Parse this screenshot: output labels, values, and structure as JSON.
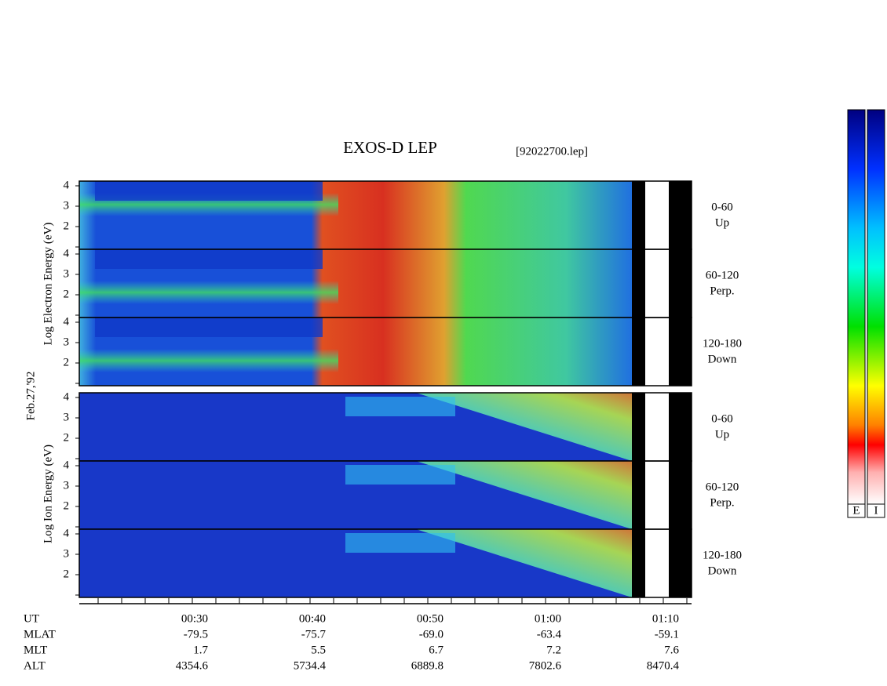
{
  "title": "EXOS-D LEP",
  "file": "[92022700.lep]",
  "electron_axis_label": "Log Electron Energy (eV)",
  "ion_axis_label": "Log Ion Energy (eV)",
  "date": "Feb.27,'92",
  "energy_ticks": [
    "4",
    "3",
    "2"
  ],
  "pitch_angles": [
    {
      "range": "0-60",
      "direction": "Up"
    },
    {
      "range": "60-120",
      "direction": "Perp."
    },
    {
      "range": "120-180",
      "direction": "Down"
    }
  ],
  "time_axis": {
    "rows": [
      {
        "label": "UT",
        "values": [
          "00:30",
          "00:40",
          "00:50",
          "01:00",
          "01:10"
        ]
      },
      {
        "label": "MLAT",
        "values": [
          "-79.5",
          "-75.7",
          "-69.0",
          "-63.4",
          "-59.1"
        ]
      },
      {
        "label": "MLT",
        "values": [
          "1.7",
          "5.5",
          "6.7",
          "7.2",
          "7.6"
        ]
      },
      {
        "label": "ALT",
        "values": [
          "4354.6",
          "5734.4",
          "6889.8",
          "7802.6",
          "8470.4"
        ]
      }
    ]
  },
  "colorbar_labels": [
    "E",
    "I"
  ]
}
